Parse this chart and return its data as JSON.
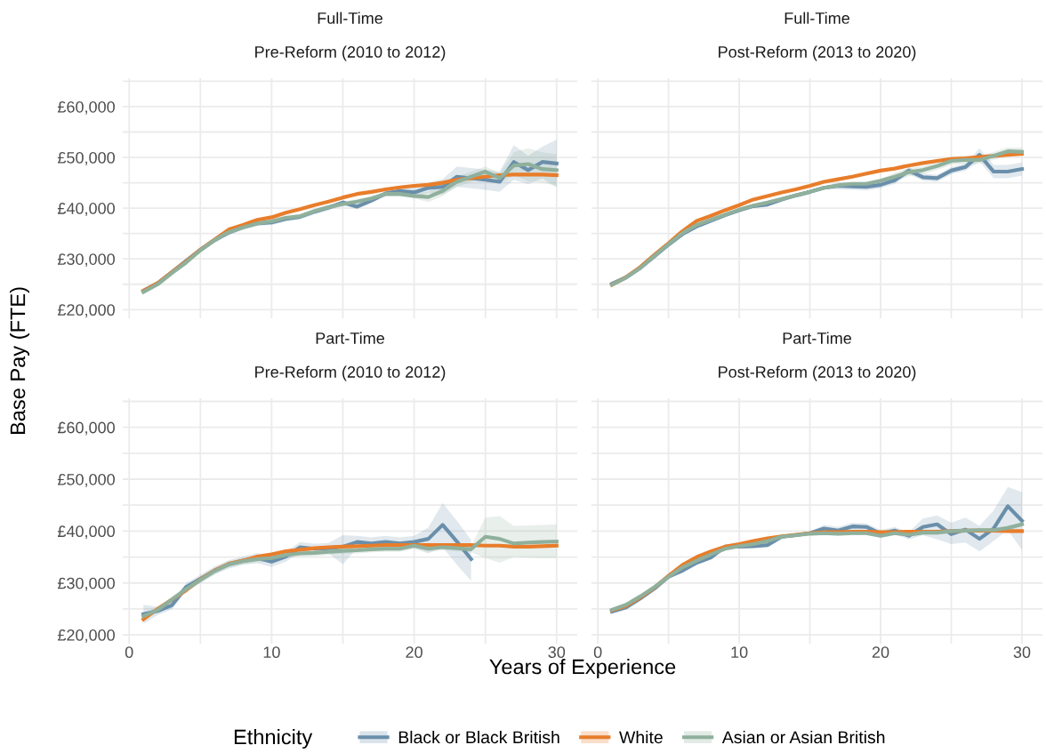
{
  "chart_data": [
    {
      "type": "line",
      "title": "Full-Time",
      "subtitle": "Pre-Reform (2010 to 2012)",
      "ylabel": "Base Pay (FTE)",
      "legend_title": "Ethnicity",
      "legend": "bottom",
      "grid": true,
      "tick_labels": "y",
      "line_style": "solid",
      "xlim": [
        -0.45,
        31.45
      ],
      "ylim": [
        18300,
        65600
      ],
      "xticks": [
        0,
        {
          "value": 5,
          "label": null
        },
        10,
        {
          "value": 15,
          "label": null
        },
        20,
        {
          "value": 25,
          "label": null
        },
        30
      ],
      "yticks": [
        {
          "value": 20000,
          "label": "£20,000"
        },
        {
          "value": 25000,
          "label": null
        },
        {
          "value": 30000,
          "label": "£30,000"
        },
        {
          "value": 35000,
          "label": null
        },
        {
          "value": 40000,
          "label": "£40,000"
        },
        {
          "value": 45000,
          "label": null
        },
        {
          "value": 50000,
          "label": "£50,000"
        },
        {
          "value": 55000,
          "label": null
        },
        {
          "value": 60000,
          "label": "£60,000"
        },
        {
          "value": 65000,
          "label": null
        }
      ],
      "x": [
        1,
        2,
        3,
        4,
        5,
        6,
        7,
        8,
        9,
        10,
        11,
        12,
        13,
        14,
        15,
        16,
        17,
        18,
        19,
        20,
        21,
        22,
        23,
        24,
        25,
        26,
        27,
        28,
        29,
        30
      ],
      "series": [
        {
          "name": "Black or Black British",
          "color": "#6a8fab",
          "values": [
            23700,
            25200,
            27400,
            29600,
            31800,
            33700,
            35200,
            36300,
            37000,
            37200,
            37900,
            38300,
            39300,
            40100,
            41100,
            40300,
            41500,
            42900,
            43400,
            43100,
            44000,
            44200,
            46200,
            45900,
            45600,
            45200,
            49100,
            47500,
            49100,
            48800
          ],
          "lower": [
            23200,
            24700,
            26900,
            29100,
            31300,
            33200,
            34700,
            35800,
            36500,
            36700,
            37400,
            37800,
            38800,
            39600,
            40600,
            39800,
            41000,
            42400,
            42400,
            42100,
            43000,
            42700,
            44200,
            43900,
            43600,
            43200,
            45600,
            44700,
            45900,
            44100
          ],
          "upper": [
            24200,
            25700,
            27900,
            30100,
            32300,
            34200,
            35700,
            36800,
            37500,
            37700,
            38400,
            38800,
            39800,
            40600,
            41600,
            40800,
            42000,
            43400,
            44400,
            44100,
            45000,
            45700,
            48200,
            47900,
            47600,
            47200,
            52400,
            50300,
            52100,
            53500
          ]
        },
        {
          "name": "White",
          "color": "#e87d2a",
          "values": [
            23700,
            25200,
            27400,
            29500,
            31800,
            33800,
            35800,
            36700,
            37700,
            38200,
            39100,
            39800,
            40600,
            41300,
            42100,
            42800,
            43200,
            43700,
            44100,
            44400,
            44600,
            45000,
            45600,
            45900,
            46200,
            46500,
            46600,
            46600,
            46600,
            46500
          ]
        },
        {
          "name": "Asian or Asian British",
          "color": "#8fb09c",
          "values": [
            23500,
            25000,
            27200,
            29300,
            31700,
            33700,
            35300,
            36200,
            37000,
            37400,
            38100,
            38400,
            39400,
            40200,
            40800,
            41300,
            41900,
            42800,
            42800,
            42400,
            42200,
            43400,
            45200,
            46200,
            47200,
            45900,
            48400,
            48700,
            47700,
            47500
          ],
          "lower": [
            23000,
            24500,
            26700,
            28800,
            31200,
            33200,
            34800,
            35700,
            36500,
            36900,
            37600,
            37900,
            38900,
            39700,
            40300,
            40800,
            41400,
            42300,
            42300,
            41900,
            41200,
            42400,
            44200,
            45200,
            46200,
            44900,
            46500,
            45300,
            45000,
            44400
          ],
          "upper": [
            24000,
            25500,
            27700,
            29800,
            32200,
            34200,
            35800,
            36700,
            37500,
            37900,
            38600,
            38900,
            39900,
            40700,
            41300,
            41800,
            42400,
            43300,
            43300,
            42900,
            43200,
            44400,
            46200,
            47200,
            48200,
            46900,
            51000,
            51800,
            51000,
            50600
          ]
        }
      ]
    },
    {
      "type": "line",
      "title": "Full-Time",
      "subtitle": "Post-Reform (2013 to 2020)",
      "grid": true,
      "tick_labels": false,
      "line_style": "solid",
      "xlim": [
        -0.45,
        31.45
      ],
      "ylim": [
        18300,
        65600
      ],
      "xticks": [
        0,
        {
          "value": 5,
          "label": null
        },
        10,
        {
          "value": 15,
          "label": null
        },
        20,
        {
          "value": 25,
          "label": null
        },
        30
      ],
      "yticks": [
        {
          "value": 20000,
          "label": null
        },
        {
          "value": 25000,
          "label": null
        },
        {
          "value": 30000,
          "label": null
        },
        {
          "value": 35000,
          "label": null
        },
        {
          "value": 40000,
          "label": null
        },
        {
          "value": 45000,
          "label": null
        },
        {
          "value": 50000,
          "label": null
        },
        {
          "value": 55000,
          "label": null
        },
        {
          "value": 60000,
          "label": null
        },
        {
          "value": 65000,
          "label": null
        }
      ],
      "x": [
        1,
        2,
        3,
        4,
        5,
        6,
        7,
        8,
        9,
        10,
        11,
        12,
        13,
        14,
        15,
        16,
        17,
        18,
        19,
        20,
        21,
        22,
        23,
        24,
        25,
        26,
        27,
        28,
        29,
        30
      ],
      "series": [
        {
          "color": "#6a8fab",
          "values": [
            25100,
            26400,
            28200,
            30500,
            32800,
            34900,
            36400,
            37500,
            38600,
            39600,
            40400,
            40700,
            41700,
            42500,
            43200,
            44000,
            44400,
            44300,
            44200,
            44600,
            45500,
            47400,
            46100,
            45900,
            47400,
            48100,
            50500,
            47200,
            47200,
            47700
          ],
          "lower": [
            24800,
            26100,
            27900,
            30200,
            32500,
            34600,
            36100,
            37200,
            38300,
            39300,
            40100,
            40400,
            41400,
            42200,
            42900,
            43700,
            43700,
            43600,
            43500,
            43900,
            44800,
            46700,
            45400,
            45200,
            46700,
            47400,
            49200,
            45900,
            45900,
            46400
          ],
          "upper": [
            25400,
            26700,
            28500,
            30800,
            33100,
            35200,
            36700,
            37800,
            38900,
            39900,
            40700,
            41000,
            42000,
            42800,
            43500,
            44300,
            45100,
            45000,
            44900,
            45300,
            46200,
            48100,
            46800,
            46600,
            48100,
            48800,
            51800,
            48500,
            48500,
            49000
          ]
        },
        {
          "color": "#e87d2a",
          "values": [
            24900,
            26400,
            28400,
            30800,
            33100,
            35500,
            37500,
            38500,
            39600,
            40600,
            41700,
            42400,
            43100,
            43700,
            44400,
            45200,
            45700,
            46200,
            46800,
            47400,
            47800,
            48400,
            48900,
            49300,
            49700,
            49800,
            50100,
            50300,
            50500,
            50700
          ]
        },
        {
          "color": "#8fb09c",
          "values": [
            24900,
            26300,
            28200,
            30600,
            32900,
            35100,
            36700,
            37700,
            38700,
            39700,
            40500,
            41100,
            41800,
            42500,
            43200,
            44000,
            44500,
            44800,
            44800,
            45400,
            46200,
            47100,
            47500,
            48300,
            49300,
            49500,
            49500,
            50300,
            51200,
            51100
          ],
          "lower": [
            24600,
            26000,
            27900,
            30300,
            32600,
            34800,
            36400,
            37400,
            38400,
            39400,
            40200,
            40800,
            41500,
            42200,
            42900,
            43700,
            44200,
            44500,
            44500,
            45100,
            45400,
            46300,
            46700,
            47500,
            48500,
            48700,
            48700,
            49500,
            50400,
            50300
          ],
          "upper": [
            25200,
            26600,
            28500,
            30900,
            33200,
            35400,
            37000,
            38000,
            39000,
            40000,
            40800,
            41400,
            42100,
            42800,
            43500,
            44300,
            44800,
            45100,
            45100,
            45700,
            47000,
            47900,
            48300,
            49100,
            50100,
            50300,
            50300,
            51100,
            52000,
            51900
          ]
        }
      ]
    },
    {
      "type": "line",
      "title": "Part-Time",
      "subtitle": "Pre-Reform (2010 to 2012)",
      "xlabel": "Years of Experience",
      "grid": true,
      "line_style": "solid",
      "xlim": [
        -0.45,
        31.45
      ],
      "ylim": [
        18300,
        65600
      ],
      "xticks": [
        0,
        {
          "value": 5,
          "label": null
        },
        10,
        {
          "value": 15,
          "label": null
        },
        20,
        {
          "value": 25,
          "label": null
        },
        30
      ],
      "yticks": [
        {
          "value": 20000,
          "label": "£20,000"
        },
        {
          "value": 25000,
          "label": null
        },
        {
          "value": 30000,
          "label": "£30,000"
        },
        {
          "value": 35000,
          "label": null
        },
        {
          "value": 40000,
          "label": "£40,000"
        },
        {
          "value": 45000,
          "label": null
        },
        {
          "value": 50000,
          "label": "£50,000"
        },
        {
          "value": 55000,
          "label": null
        },
        {
          "value": 60000,
          "label": "£60,000"
        },
        {
          "value": 65000,
          "label": null
        }
      ],
      "x": [
        1,
        2,
        3,
        4,
        5,
        6,
        7,
        8,
        9,
        10,
        11,
        12,
        13,
        14,
        15,
        16,
        17,
        18,
        19,
        20,
        21,
        22,
        23,
        24,
        25,
        26,
        27,
        28,
        29,
        30
      ],
      "series": [
        {
          "color": "#6a8fab",
          "values": [
            24000,
            24600,
            25700,
            29200,
            30800,
            32400,
            33600,
            34300,
            34800,
            34100,
            35100,
            36900,
            36600,
            36700,
            37000,
            37900,
            37600,
            37900,
            37600,
            37900,
            38500,
            41200,
            38000,
            34600,
            null,
            null,
            null,
            null,
            null,
            null
          ],
          "lower": [
            22100,
            23800,
            24900,
            28400,
            30000,
            31600,
            32800,
            33500,
            33800,
            33100,
            34100,
            35900,
            35600,
            35700,
            33600,
            36700,
            36400,
            36700,
            36400,
            36700,
            35700,
            36900,
            33500,
            30400,
            null,
            null,
            null,
            null,
            null,
            null
          ],
          "upper": [
            25800,
            25400,
            26500,
            30000,
            31600,
            33200,
            34400,
            35100,
            35800,
            35100,
            36100,
            37900,
            37600,
            37700,
            39200,
            39100,
            38800,
            39100,
            38800,
            39100,
            40700,
            45400,
            42000,
            38300,
            null,
            null,
            null,
            null,
            null,
            null
          ]
        },
        {
          "color": "#e87d2a",
          "values": [
            23000,
            25000,
            26800,
            28600,
            30700,
            32400,
            33700,
            34300,
            35100,
            35500,
            36100,
            36400,
            36700,
            36900,
            37000,
            37100,
            37200,
            37300,
            37300,
            37300,
            37300,
            37300,
            37300,
            37300,
            37200,
            37200,
            37000,
            37000,
            37100,
            37200
          ]
        },
        {
          "color": "#8fb09c",
          "values": [
            23600,
            24800,
            26800,
            28800,
            30600,
            32300,
            33600,
            34200,
            34600,
            34800,
            35400,
            35700,
            35800,
            36000,
            36200,
            36300,
            36500,
            36600,
            36600,
            37200,
            36600,
            36900,
            36700,
            36500,
            38900,
            38500,
            37600,
            37800,
            37900,
            38000
          ],
          "lower": [
            23000,
            24200,
            26200,
            28200,
            30000,
            31700,
            33000,
            33600,
            34000,
            34200,
            34800,
            35100,
            35200,
            35400,
            35600,
            35700,
            35900,
            36000,
            36000,
            36600,
            36000,
            36300,
            36100,
            35900,
            34800,
            33900,
            35000,
            34900,
            34800,
            34800
          ],
          "upper": [
            24200,
            25400,
            27400,
            29400,
            31200,
            32900,
            34200,
            34800,
            35200,
            35400,
            36000,
            36300,
            36400,
            36600,
            36800,
            36900,
            37100,
            37200,
            37200,
            37800,
            37200,
            37500,
            37300,
            37100,
            42600,
            42900,
            41000,
            41100,
            41200,
            41300
          ]
        }
      ]
    },
    {
      "type": "line",
      "title": "Part-Time",
      "subtitle": "Post-Reform (2013 to 2020)",
      "grid": true,
      "tick_labels": "x",
      "line_style": "solid",
      "xlim": [
        -0.45,
        31.45
      ],
      "ylim": [
        18300,
        65600
      ],
      "xticks": [
        0,
        {
          "value": 5,
          "label": null
        },
        10,
        {
          "value": 15,
          "label": null
        },
        20,
        {
          "value": 25,
          "label": null
        },
        30
      ],
      "yticks": [
        {
          "value": 20000,
          "label": null
        },
        {
          "value": 25000,
          "label": null
        },
        {
          "value": 30000,
          "label": null
        },
        {
          "value": 35000,
          "label": null
        },
        {
          "value": 40000,
          "label": null
        },
        {
          "value": 45000,
          "label": null
        },
        {
          "value": 50000,
          "label": null
        },
        {
          "value": 55000,
          "label": null
        },
        {
          "value": 60000,
          "label": null
        },
        {
          "value": 65000,
          "label": null
        }
      ],
      "x": [
        1,
        2,
        3,
        4,
        5,
        6,
        7,
        8,
        9,
        10,
        11,
        12,
        13,
        14,
        15,
        16,
        17,
        18,
        19,
        20,
        21,
        22,
        23,
        24,
        25,
        26,
        27,
        28,
        29,
        30
      ],
      "series": [
        {
          "color": "#6a8fab",
          "values": [
            24500,
            25300,
            27000,
            28900,
            31200,
            32400,
            33900,
            34900,
            37000,
            37000,
            37100,
            37300,
            38900,
            39200,
            39600,
            40500,
            40100,
            40900,
            40800,
            39500,
            40100,
            39100,
            40800,
            41300,
            39400,
            40300,
            38500,
            40500,
            44800,
            42000
          ],
          "lower": [
            24200,
            25000,
            26700,
            28600,
            30900,
            32100,
            33600,
            34600,
            36700,
            36700,
            36800,
            37000,
            38600,
            38900,
            39300,
            39800,
            39400,
            40200,
            40100,
            38800,
            39400,
            38400,
            39200,
            38400,
            37500,
            37800,
            36100,
            38100,
            40200,
            36400
          ],
          "upper": [
            24800,
            25600,
            27300,
            29200,
            31500,
            32700,
            34200,
            35200,
            37300,
            37300,
            37400,
            37600,
            39200,
            39500,
            39900,
            41200,
            40800,
            41600,
            41500,
            40200,
            40800,
            39800,
            42400,
            43000,
            41600,
            42600,
            41000,
            44000,
            48500,
            47500
          ]
        },
        {
          "color": "#e87d2a",
          "values": [
            24700,
            25600,
            27200,
            29100,
            31400,
            33500,
            35000,
            36100,
            37000,
            37500,
            38100,
            38600,
            39000,
            39300,
            39600,
            39800,
            39800,
            39900,
            39900,
            39800,
            39800,
            39900,
            39900,
            39900,
            40000,
            40100,
            40100,
            40100,
            40000,
            40000
          ]
        },
        {
          "color": "#8fb09c",
          "values": [
            24800,
            25800,
            27400,
            29200,
            31200,
            33000,
            34300,
            35500,
            36600,
            37100,
            37500,
            38100,
            38900,
            39200,
            39500,
            39600,
            39500,
            39600,
            39600,
            39100,
            39600,
            39300,
            39700,
            39700,
            40000,
            40100,
            40200,
            40200,
            40600,
            41300
          ],
          "lower": [
            24400,
            25400,
            27000,
            28800,
            30800,
            32600,
            33900,
            35100,
            36200,
            36700,
            37100,
            37700,
            38500,
            38800,
            39100,
            39200,
            39100,
            39200,
            39200,
            38700,
            39200,
            38900,
            39300,
            39300,
            39600,
            39700,
            39800,
            39800,
            40200,
            40900
          ],
          "upper": [
            25200,
            26200,
            27800,
            29600,
            31600,
            33400,
            34700,
            35900,
            37000,
            37500,
            37900,
            38500,
            39300,
            39600,
            39900,
            40000,
            39900,
            40000,
            40000,
            39500,
            40000,
            39700,
            40100,
            40100,
            40400,
            40500,
            40600,
            40600,
            41000,
            41700
          ]
        }
      ]
    }
  ]
}
